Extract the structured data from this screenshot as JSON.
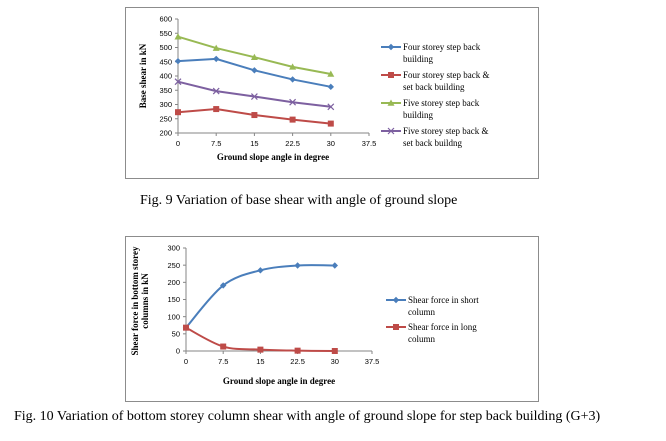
{
  "captions": {
    "fig9": "Fig. 9 Variation of base shear with angle of ground slope",
    "fig10": "Fig. 10 Variation of bottom storey column shear with angle of ground slope for step back building (G+3)"
  },
  "chart_data": [
    {
      "type": "line",
      "title": "",
      "xlabel": "Ground slope angle in degree",
      "ylabel": "Base shear in kN",
      "x": [
        0,
        7.5,
        15,
        22.5,
        30
      ],
      "xticks": [
        "0",
        "7.5",
        "15",
        "22.5",
        "30",
        "37.5"
      ],
      "xlim": [
        0,
        37.5
      ],
      "ylim": [
        200,
        600
      ],
      "yticks": [
        200,
        250,
        300,
        350,
        400,
        450,
        500,
        550,
        600
      ],
      "legend_position": "right",
      "series": [
        {
          "name": "Four storey step back building",
          "legend_lines": [
            "Four storey step back",
            "building"
          ],
          "values": [
            452,
            460,
            420,
            388,
            362
          ],
          "color": "#4a7ebb",
          "marker": "diamond"
        },
        {
          "name": "Four storey step back & set back building",
          "legend_lines": [
            "Four storey step back &",
            "set back building"
          ],
          "values": [
            273,
            284,
            263,
            247,
            233
          ],
          "color": "#be4b48",
          "marker": "square"
        },
        {
          "name": "Five storey step back building",
          "legend_lines": [
            "Five storey step back",
            "building"
          ],
          "values": [
            538,
            498,
            466,
            432,
            407
          ],
          "color": "#98b954",
          "marker": "triangle"
        },
        {
          "name": "Five storey step back & set back buildng",
          "legend_lines": [
            "Five storey step back &",
            "set back buildng"
          ],
          "values": [
            380,
            347,
            328,
            308,
            292
          ],
          "color": "#7d60a0",
          "marker": "x"
        }
      ]
    },
    {
      "type": "line",
      "title": "",
      "xlabel": "Ground slope angle in degree",
      "ylabel": "Shear force in bottom storey columns in kN",
      "ylabel_lines": [
        "Shear force in bottom storey",
        "columns in kN"
      ],
      "x": [
        0,
        7.5,
        15,
        22.5,
        30
      ],
      "xticks": [
        "0",
        "7.5",
        "15",
        "22.5",
        "30",
        "37.5"
      ],
      "xlim": [
        0,
        37.5
      ],
      "ylim": [
        0,
        300
      ],
      "yticks": [
        0,
        50,
        100,
        150,
        200,
        250,
        300
      ],
      "legend_position": "right",
      "smooth": true,
      "series": [
        {
          "name": "Shear force in short column",
          "legend_lines": [
            "Shear force in short",
            "column"
          ],
          "values": [
            68,
            191,
            235,
            249,
            249
          ],
          "color": "#4a7ebb",
          "marker": "diamond"
        },
        {
          "name": "Shear force in long column",
          "legend_lines": [
            "Shear force in long",
            "column"
          ],
          "values": [
            68,
            13,
            4,
            1,
            0
          ],
          "color": "#be4b48",
          "marker": "square"
        }
      ]
    }
  ]
}
